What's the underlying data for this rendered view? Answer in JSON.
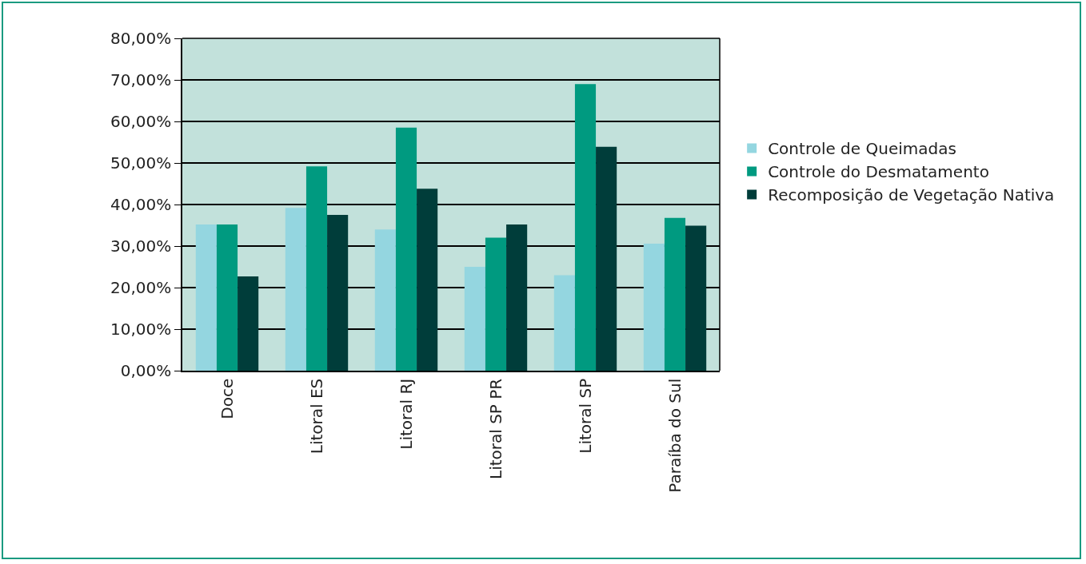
{
  "chart_data": {
    "type": "bar",
    "categories": [
      "Doce",
      "Litoral ES",
      "Litoral RJ",
      "Litoral SP PR",
      "Litoral SP",
      "Paraíba do Sul"
    ],
    "series": [
      {
        "name": "Controle de Queimadas",
        "color": "#94d6e0",
        "values": [
          35.2,
          39.2,
          34.0,
          25.0,
          23.0,
          30.6
        ]
      },
      {
        "name": "Controle do Desmatamento",
        "color": "#009a80",
        "values": [
          35.2,
          49.2,
          58.5,
          32.0,
          69.0,
          36.8
        ]
      },
      {
        "name": "Recomposição de Vegetação Nativa",
        "color": "#003d3a",
        "values": [
          22.7,
          37.5,
          43.8,
          35.2,
          53.9,
          34.9
        ]
      }
    ],
    "ylim": [
      0,
      80
    ],
    "yticks": [
      {
        "value": 0,
        "label": "0,00%"
      },
      {
        "value": 10,
        "label": "10,00%"
      },
      {
        "value": 20,
        "label": "20,00%"
      },
      {
        "value": 30,
        "label": "30,00%"
      },
      {
        "value": 40,
        "label": "40,00%"
      },
      {
        "value": 50,
        "label": "50,00%"
      },
      {
        "value": 60,
        "label": "60,00%"
      },
      {
        "value": 70,
        "label": "70,00%"
      },
      {
        "value": 80,
        "label": "80,00%"
      }
    ],
    "grid": "y",
    "legend": "right"
  }
}
